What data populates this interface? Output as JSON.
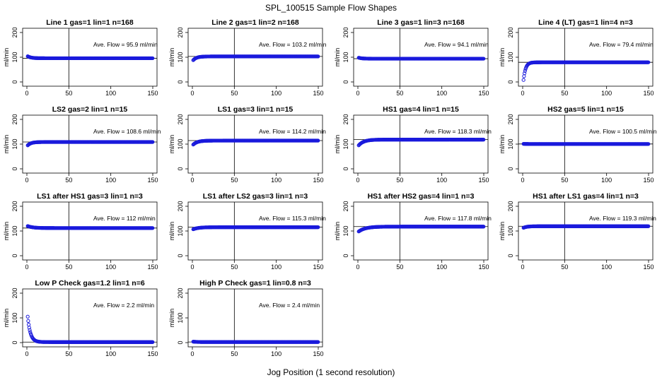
{
  "figure": {
    "title": "SPL_100515  Sample Flow Shapes",
    "xlabel": "Jog Position (1 second resolution)"
  },
  "style": {
    "point_color": "#1a1adc",
    "axis_color": "#000000",
    "background": "#ffffff"
  },
  "chart_data": [
    {
      "type": "scatter",
      "title": "Line 1 gas=1 lin=1 n=168",
      "ylabel": "ml/min",
      "annotation": "Ave. Flow =  95.9  ml/min",
      "xlim": [
        0,
        150
      ],
      "ylim": [
        0,
        200
      ],
      "xticks": [
        0,
        50,
        100,
        150
      ],
      "yticks": [
        0,
        100,
        200
      ],
      "vline": 50,
      "hline": 95.9,
      "shape": {
        "kind": "flat",
        "start": 104,
        "end": 95.9,
        "tau": 4,
        "extent": 150
      }
    },
    {
      "type": "scatter",
      "title": "Line 2 gas=1 lin=2 n=168",
      "ylabel": "ml/min",
      "annotation": "Ave. Flow =  103.2  ml/min",
      "xlim": [
        0,
        150
      ],
      "ylim": [
        0,
        200
      ],
      "xticks": [
        0,
        50,
        100,
        150
      ],
      "yticks": [
        0,
        100,
        200
      ],
      "vline": 50,
      "hline": 103.2,
      "shape": {
        "kind": "rise",
        "start": 88,
        "end": 103.2,
        "tau": 4,
        "extent": 150
      }
    },
    {
      "type": "scatter",
      "title": "Line 3 gas=1 lin=3 n=168",
      "ylabel": "ml/min",
      "annotation": "Ave. Flow =  94.1  ml/min",
      "xlim": [
        0,
        150
      ],
      "ylim": [
        0,
        200
      ],
      "xticks": [
        0,
        50,
        100,
        150
      ],
      "yticks": [
        0,
        100,
        200
      ],
      "vline": 50,
      "hline": 94.1,
      "shape": {
        "kind": "flat",
        "start": 98,
        "end": 94.1,
        "tau": 4,
        "extent": 150
      }
    },
    {
      "type": "scatter",
      "title": "Line 4 (LT) gas=1 lin=4 n=3",
      "ylabel": "ml/min",
      "annotation": "Ave. Flow =  79.4  ml/min",
      "xlim": [
        0,
        150
      ],
      "ylim": [
        0,
        200
      ],
      "xticks": [
        0,
        50,
        100,
        150
      ],
      "yticks": [
        0,
        100,
        200
      ],
      "vline": 50,
      "hline": 79.4,
      "shape": {
        "kind": "rise",
        "start": 8,
        "end": 79.4,
        "tau": 2.5,
        "extent": 150
      }
    },
    {
      "type": "scatter",
      "title": "LS2 gas=2 lin=1 n=15",
      "ylabel": "ml/min",
      "annotation": "Ave. Flow =  108.6  ml/min",
      "xlim": [
        0,
        150
      ],
      "ylim": [
        0,
        200
      ],
      "xticks": [
        0,
        50,
        100,
        150
      ],
      "yticks": [
        0,
        100,
        200
      ],
      "vline": 50,
      "hline": 108.6,
      "shape": {
        "kind": "rise",
        "start": 95,
        "end": 108.6,
        "tau": 4,
        "extent": 150
      }
    },
    {
      "type": "scatter",
      "title": "LS1 gas=3 lin=1 n=15",
      "ylabel": "ml/min",
      "annotation": "Ave. Flow =  114.2  ml/min",
      "xlim": [
        0,
        150
      ],
      "ylim": [
        0,
        200
      ],
      "xticks": [
        0,
        50,
        100,
        150
      ],
      "yticks": [
        0,
        100,
        200
      ],
      "vline": 50,
      "hline": 114.2,
      "shape": {
        "kind": "rise",
        "start": 98,
        "end": 114.2,
        "tau": 5,
        "extent": 150
      }
    },
    {
      "type": "scatter",
      "title": "HS1 gas=4 lin=1 n=15",
      "ylabel": "ml/min",
      "annotation": "Ave. Flow =  118.3  ml/min",
      "xlim": [
        0,
        150
      ],
      "ylim": [
        0,
        200
      ],
      "xticks": [
        0,
        50,
        100,
        150
      ],
      "yticks": [
        0,
        100,
        200
      ],
      "vline": 50,
      "hline": 118.3,
      "shape": {
        "kind": "rise",
        "start": 95,
        "end": 118.3,
        "tau": 6,
        "extent": 150
      }
    },
    {
      "type": "scatter",
      "title": "HS2 gas=5 lin=1 n=15",
      "ylabel": "ml/min",
      "annotation": "Ave. Flow =  100.5  ml/min",
      "xlim": [
        0,
        150
      ],
      "ylim": [
        0,
        200
      ],
      "xticks": [
        0,
        50,
        100,
        150
      ],
      "yticks": [
        0,
        100,
        200
      ],
      "vline": 50,
      "hline": 100.5,
      "shape": {
        "kind": "flat",
        "start": 101,
        "end": 100.5,
        "tau": 4,
        "extent": 150
      }
    },
    {
      "type": "scatter",
      "title": "LS1 after HS1 gas=3 lin=1 n=3",
      "ylabel": "ml/min",
      "annotation": "Ave. Flow =  112  ml/min",
      "xlim": [
        0,
        150
      ],
      "ylim": [
        0,
        200
      ],
      "xticks": [
        0,
        50,
        100,
        150
      ],
      "yticks": [
        0,
        100,
        200
      ],
      "vline": 50,
      "hline": 112,
      "shape": {
        "kind": "fall",
        "start": 120,
        "end": 112,
        "tau": 6,
        "extent": 150
      }
    },
    {
      "type": "scatter",
      "title": "LS1 after LS2 gas=3 lin=1 n=3",
      "ylabel": "ml/min",
      "annotation": "Ave. Flow =  115.3  ml/min",
      "xlim": [
        0,
        150
      ],
      "ylim": [
        0,
        200
      ],
      "xticks": [
        0,
        50,
        100,
        150
      ],
      "yticks": [
        0,
        100,
        200
      ],
      "vline": 50,
      "hline": 115.3,
      "shape": {
        "kind": "rise",
        "start": 107,
        "end": 115.3,
        "tau": 6,
        "extent": 150
      }
    },
    {
      "type": "scatter",
      "title": "HS1 after HS2 gas=4 lin=1 n=3",
      "ylabel": "ml/min",
      "annotation": "Ave. Flow =  117.8  ml/min",
      "xlim": [
        0,
        150
      ],
      "ylim": [
        0,
        200
      ],
      "xticks": [
        0,
        50,
        100,
        150
      ],
      "yticks": [
        0,
        100,
        200
      ],
      "vline": 50,
      "hline": 117.8,
      "shape": {
        "kind": "rise",
        "start": 98,
        "end": 117.8,
        "tau": 8,
        "extent": 150
      }
    },
    {
      "type": "scatter",
      "title": "HS1 after LS1 gas=4 lin=1 n=3",
      "ylabel": "ml/min",
      "annotation": "Ave. Flow =  119.3  ml/min",
      "xlim": [
        0,
        150
      ],
      "ylim": [
        0,
        200
      ],
      "xticks": [
        0,
        50,
        100,
        150
      ],
      "yticks": [
        0,
        100,
        200
      ],
      "vline": 50,
      "hline": 119.3,
      "shape": {
        "kind": "rise",
        "start": 113,
        "end": 119.3,
        "tau": 4,
        "extent": 150
      }
    },
    {
      "type": "scatter",
      "title": "Low P Check gas=1.2 lin=1 n=6",
      "ylabel": "ml/min",
      "annotation": "Ave. Flow =  2.2  ml/min",
      "xlim": [
        0,
        150
      ],
      "ylim": [
        0,
        200
      ],
      "xticks": [
        0,
        50,
        100,
        150
      ],
      "yticks": [
        0,
        100,
        200
      ],
      "vline": 50,
      "hline": 2.2,
      "shape": {
        "kind": "fall",
        "start": 105,
        "end": 2.2,
        "tau": 3.2,
        "extent": 150
      }
    },
    {
      "type": "scatter",
      "title": "High P Check gas=1 lin=0.8 n=3",
      "ylabel": "ml/min",
      "annotation": "Ave. Flow =  2.4  ml/min",
      "xlim": [
        0,
        150
      ],
      "ylim": [
        0,
        200
      ],
      "xticks": [
        0,
        50,
        100,
        150
      ],
      "yticks": [
        0,
        100,
        200
      ],
      "vline": 50,
      "hline": 2.4,
      "shape": {
        "kind": "flat",
        "start": 4,
        "end": 2.4,
        "tau": 4,
        "extent": 150
      }
    }
  ]
}
